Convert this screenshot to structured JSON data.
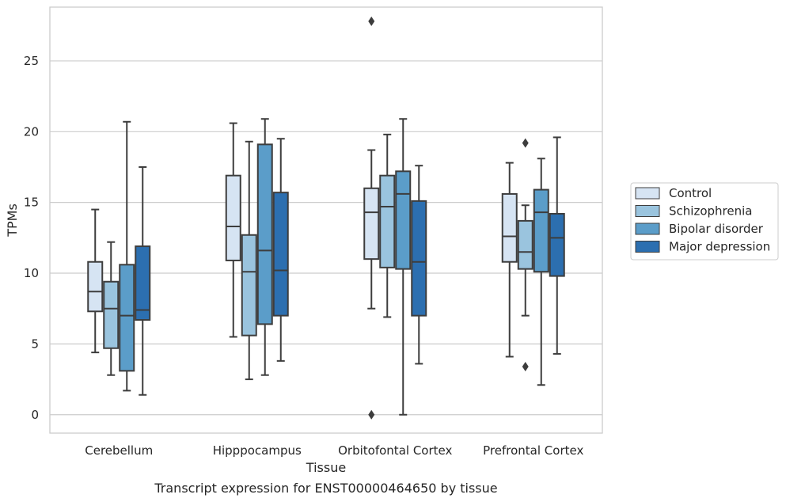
{
  "chart_data": {
    "type": "box",
    "title": "",
    "caption": "Transcript expression for ENST00000464650 by tissue",
    "xlabel": "Tissue",
    "ylabel": "TPMs",
    "ylim": [
      -1.3,
      28.8
    ],
    "yticks": [
      0,
      5,
      10,
      15,
      20,
      25
    ],
    "grid": "horizontal",
    "legend_position": "right",
    "categories": [
      "Cerebellum",
      "Hipppocampus",
      "Orbitofontal Cortex",
      "Prefrontal Cortex"
    ],
    "series": [
      {
        "name": "Control",
        "color": "#d6e4f3",
        "boxes": [
          {
            "whisker_low": 4.4,
            "q1": 7.3,
            "median": 8.7,
            "q3": 10.8,
            "whisker_high": 14.5,
            "outliers": []
          },
          {
            "whisker_low": 5.5,
            "q1": 10.9,
            "median": 13.3,
            "q3": 16.9,
            "whisker_high": 20.6,
            "outliers": []
          },
          {
            "whisker_low": 7.5,
            "q1": 11.0,
            "median": 14.3,
            "q3": 16.0,
            "whisker_high": 18.7,
            "outliers": [
              0.0,
              27.8
            ]
          },
          {
            "whisker_low": 4.1,
            "q1": 10.8,
            "median": 12.6,
            "q3": 15.6,
            "whisker_high": 17.8,
            "outliers": []
          }
        ]
      },
      {
        "name": "Schizophrenia",
        "color": "#9ac4de",
        "boxes": [
          {
            "whisker_low": 2.8,
            "q1": 4.7,
            "median": 7.5,
            "q3": 9.4,
            "whisker_high": 12.2,
            "outliers": []
          },
          {
            "whisker_low": 2.5,
            "q1": 5.6,
            "median": 10.1,
            "q3": 12.7,
            "whisker_high": 19.3,
            "outliers": []
          },
          {
            "whisker_low": 6.9,
            "q1": 10.4,
            "median": 14.7,
            "q3": 16.9,
            "whisker_high": 19.8,
            "outliers": []
          },
          {
            "whisker_low": 7.0,
            "q1": 10.3,
            "median": 11.5,
            "q3": 13.7,
            "whisker_high": 14.8,
            "outliers": [
              3.4,
              19.2
            ]
          }
        ]
      },
      {
        "name": "Bipolar disorder",
        "color": "#5b9dc9",
        "boxes": [
          {
            "whisker_low": 1.7,
            "q1": 3.1,
            "median": 7.0,
            "q3": 10.6,
            "whisker_high": 20.7,
            "outliers": []
          },
          {
            "whisker_low": 2.8,
            "q1": 6.4,
            "median": 11.6,
            "q3": 19.1,
            "whisker_high": 20.9,
            "outliers": []
          },
          {
            "whisker_low": 0.0,
            "q1": 10.3,
            "median": 15.6,
            "q3": 17.2,
            "whisker_high": 20.9,
            "outliers": []
          },
          {
            "whisker_low": 2.1,
            "q1": 10.1,
            "median": 14.3,
            "q3": 15.9,
            "whisker_high": 18.1,
            "outliers": []
          }
        ]
      },
      {
        "name": "Major depression",
        "color": "#2c6fb0",
        "boxes": [
          {
            "whisker_low": 1.4,
            "q1": 6.7,
            "median": 7.4,
            "q3": 11.9,
            "whisker_high": 17.5,
            "outliers": []
          },
          {
            "whisker_low": 3.8,
            "q1": 7.0,
            "median": 10.2,
            "q3": 15.7,
            "whisker_high": 19.5,
            "outliers": []
          },
          {
            "whisker_low": 3.6,
            "q1": 7.0,
            "median": 10.8,
            "q3": 15.1,
            "whisker_high": 17.6,
            "outliers": []
          },
          {
            "whisker_low": 4.3,
            "q1": 9.8,
            "median": 12.5,
            "q3": 14.2,
            "whisker_high": 19.6,
            "outliers": []
          }
        ]
      }
    ]
  }
}
